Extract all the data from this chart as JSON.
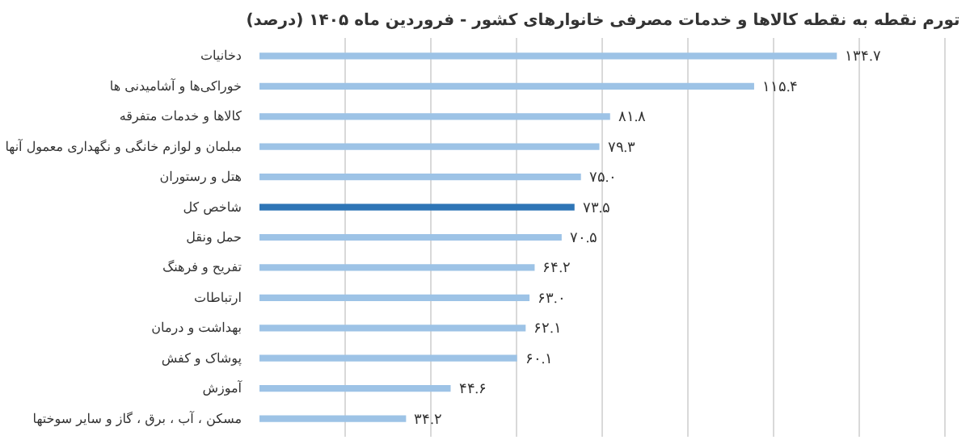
{
  "chart_data": {
    "type": "bar",
    "orientation": "horizontal",
    "title": "تورم نقطه به نقطه کالاها و خدمات مصرفی خانوارهای کشور - فروردین ماه ۱۴۰۵ (درصد)",
    "categories": [
      "دخانیات",
      "خوراکی‌ها و آشامیدنی ها",
      "کالاها و خدمات متفرقه",
      "مبلمان و لوازم خانگی و نگهداری معمول آنها",
      "هتل و رستوران",
      "شاخص کل",
      "حمل ونقل",
      "تفریح و فرهنگ",
      "ارتباطات",
      "بهداشت و درمان",
      "پوشاک و کفش",
      "آموزش",
      "مسکن ، آب ، برق ، گاز و سایر سوختها"
    ],
    "values": [
      134.7,
      115.4,
      81.8,
      79.3,
      75.0,
      73.5,
      70.5,
      64.2,
      63.0,
      62.1,
      60.1,
      44.6,
      34.2
    ],
    "value_labels": [
      "۱۳۴.۷",
      "۱۱۵.۴",
      "۸۱.۸",
      "۷۹.۳",
      "۷۵.۰",
      "۷۳.۵",
      "۷۰.۵",
      "۶۴.۲",
      "۶۳.۰",
      "۶۲.۱",
      "۶۰.۱",
      "۴۴.۶",
      "۳۴.۲"
    ],
    "colors": [
      "#9dc3e6",
      "#9dc3e6",
      "#9dc3e6",
      "#9dc3e6",
      "#9dc3e6",
      "#2e75b6",
      "#9dc3e6",
      "#9dc3e6",
      "#9dc3e6",
      "#9dc3e6",
      "#9dc3e6",
      "#9dc3e6",
      "#9dc3e6"
    ],
    "grid": "x",
    "tick_labels": "y"
  }
}
